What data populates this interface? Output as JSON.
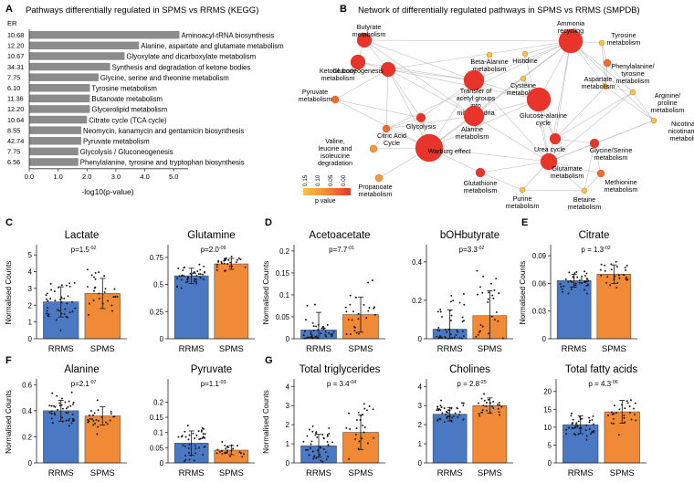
{
  "panel_a": {
    "letter": "A",
    "title": "Pathways differentially regulated in SPMS vs RRMS (KEGG)",
    "er_label": "ER",
    "xlabel": "-log10(p-value)",
    "ticks": [
      "0.0",
      "1.0",
      "2.0",
      "3.0",
      "4.0",
      "5.0"
    ]
  },
  "panel_b": {
    "letter": "B",
    "title": "Network of differentially regulated pathways in SPMS vs RRMS (SMPDB)",
    "legend_title": "p value",
    "legend_ticks": [
      "0.15",
      "0.10",
      "0.05",
      "0.00"
    ]
  },
  "panel_letters": {
    "c": "C",
    "d": "D",
    "e": "E",
    "f": "F",
    "g": "G"
  },
  "colors": {
    "rrms": "#4a78c2",
    "spms": "#f08a36",
    "bar_a": "#8c8c8c",
    "node": "#e8342a"
  },
  "chart_data": [
    {
      "type": "bar",
      "panel": "A",
      "title": "Pathways differentially regulated in SPMS vs RRMS (KEGG)",
      "xlabel": "-log10(p-value)",
      "xlim": [
        0,
        5.5
      ],
      "rows": [
        {
          "er": "10.68",
          "label": "Aminoacyl-tRNA biosynthesis",
          "value": 5.2
        },
        {
          "er": "12.20",
          "label": "Alanine, aspartate and glutamate metabolism",
          "value": 3.8
        },
        {
          "er": "10.67",
          "label": "Glyoxylate and dicarboxylate metabolism",
          "value": 3.3
        },
        {
          "er": "34.31",
          "label": "Synthesis and degradation of ketone bodies",
          "value": 2.8
        },
        {
          "er": "7.75",
          "label": "Glycine, serine and theonine metabolism",
          "value": 2.4
        },
        {
          "er": "6.10",
          "label": "Tyrosine metabolism",
          "value": 2.1
        },
        {
          "er": "11.36",
          "label": "Butanoate metabolism",
          "value": 2.1
        },
        {
          "er": "12.20",
          "label": "Glycerolipid metabolism",
          "value": 2.1
        },
        {
          "er": "10.64",
          "label": "Citrate cycle (TCA cycle)",
          "value": 2.0
        },
        {
          "er": "8.55",
          "label": "Neomycin, kanamycin and gentamicin biosynthesis",
          "value": 1.8
        },
        {
          "er": "42.74",
          "label": "Pyruvate metabolism",
          "value": 1.8
        },
        {
          "er": "7.75",
          "label": "Glycolysis / Gluconeogenesis",
          "value": 1.7
        },
        {
          "er": "6.56",
          "label": "Phenylalanine, tyrosine and tryptophan biosynthesis",
          "value": 1.7
        }
      ]
    },
    {
      "type": "network",
      "panel": "B",
      "title": "Network of differentially regulated pathways in SPMS vs RRMS (SMPDB)",
      "legend_title": "p value",
      "nodes": [
        {
          "label": "Ammonia recycling",
          "p": 0.0,
          "r": 13,
          "lx": 0,
          "ly": -17
        },
        {
          "label": "Butyrate metabolism",
          "p": 0.01,
          "r": 8,
          "lx": 5,
          "ly": -12
        },
        {
          "label": "Ketone body metabolism",
          "p": 0.01,
          "r": 8,
          "lx": -22,
          "ly": 12
        },
        {
          "label": "Beta-Alanine metabolism",
          "p": 0.12,
          "r": 3,
          "lx": 0,
          "ly": 10
        },
        {
          "label": "Histidine",
          "p": 0.12,
          "r": 3,
          "lx": 0,
          "ly": 10
        },
        {
          "label": "Tyrosine metabolism",
          "p": 0.12,
          "r": 3,
          "lx": 24,
          "ly": -6
        },
        {
          "label": "Phenylalanine/ tyrosine metabolism",
          "p": 0.05,
          "r": 4,
          "lx": 28,
          "ly": 6
        },
        {
          "label": "Gluconeogenesis",
          "p": 0.01,
          "r": 8,
          "lx": -33,
          "ly": 4
        },
        {
          "label": "Cysteine metabolism",
          "p": 0.12,
          "r": 3,
          "lx": 0,
          "ly": 10
        },
        {
          "label": "Aspartate metabolism",
          "p": 0.15,
          "r": 3,
          "lx": -8,
          "ly": -6
        },
        {
          "label": "Arginine/ proline metabolism",
          "p": 0.15,
          "r": 3,
          "lx": 38,
          "ly": 6
        },
        {
          "label": "Pyruvate metabolism",
          "p": 0.05,
          "r": 4,
          "lx": -22,
          "ly": -6
        },
        {
          "label": "Transfer of acetyl groups into mitochondria",
          "p": 0.0,
          "r": 11,
          "lx": 2,
          "ly": 14
        },
        {
          "label": "Glycolysis",
          "p": 0.02,
          "r": 5,
          "lx": 0,
          "ly": 12
        },
        {
          "label": "Glucose-alanine cycle",
          "p": 0.0,
          "r": 13,
          "lx": 5,
          "ly": 20
        },
        {
          "label": "Alanine metabolism",
          "p": 0.0,
          "r": 11,
          "lx": -2,
          "ly": 17
        },
        {
          "label": "Citric Acid Cycle",
          "p": 0.04,
          "r": 4,
          "lx": 6,
          "ly": 10
        },
        {
          "label": "Urea cycle",
          "p": 0.02,
          "r": 6,
          "lx": -6,
          "ly": 14
        },
        {
          "label": "Nicotinate/ nicotinamide metabolism",
          "p": 0.15,
          "r": 3,
          "lx": 36,
          "ly": 6
        },
        {
          "label": "Valine, leucine and isoleucine degradation",
          "p": 0.07,
          "r": 4,
          "lx": -42,
          "ly": -6
        },
        {
          "label": "Glycine/Serine metabolism",
          "p": 0.02,
          "r": 5,
          "lx": 18,
          "ly": 10
        },
        {
          "label": "Warburg effect",
          "p": 0.0,
          "r": 15,
          "lx": 22,
          "ly": 6
        },
        {
          "label": "Glutamate metabolism",
          "p": 0.0,
          "r": 9,
          "lx": 20,
          "ly": 10
        },
        {
          "label": "Glutathione metabolism",
          "p": 0.02,
          "r": 5,
          "lx": 0,
          "ly": 14
        },
        {
          "label": "Methionine metabolism",
          "p": 0.04,
          "r": 4,
          "lx": 22,
          "ly": 12
        },
        {
          "label": "Purine metabolism",
          "p": 0.12,
          "r": 3,
          "lx": 0,
          "ly": 12
        },
        {
          "label": "Betaine metabolism",
          "p": 0.12,
          "r": 3,
          "lx": 0,
          "ly": 12
        },
        {
          "label": "Propanoate metabolism",
          "p": 0.07,
          "r": 4,
          "lx": -4,
          "ly": 12
        }
      ]
    },
    {
      "type": "bar",
      "panel": "C",
      "title": "Lactate",
      "ylabel": "Normalised Counts",
      "categories": [
        "RRMS",
        "SPMS"
      ],
      "values": [
        2.2,
        2.7
      ],
      "errors": [
        0.9,
        0.9
      ],
      "ylim": [
        0,
        5.5
      ],
      "yticks": [
        0,
        1,
        2,
        3,
        4,
        5
      ],
      "annotation": "p=1.5",
      "annotation_exp": "-02"
    },
    {
      "type": "bar",
      "panel": "C",
      "title": "Glutamine",
      "ylabel": "",
      "categories": [
        "RRMS",
        "SPMS"
      ],
      "values": [
        0.58,
        0.69
      ],
      "errors": [
        0.07,
        0.05
      ],
      "ylim": [
        0,
        0.85
      ],
      "yticks": [
        0,
        0.25,
        0.5,
        0.75
      ],
      "annotation": "p=2.0",
      "annotation_exp": "-09"
    },
    {
      "type": "bar",
      "panel": "D",
      "title": "Acetoacetate",
      "ylabel": "Normalised Counts",
      "categories": [
        "RRMS",
        "SPMS"
      ],
      "values": [
        0.02,
        0.055
      ],
      "errors": [
        0.04,
        0.04
      ],
      "ylim": [
        0,
        0.21
      ],
      "yticks": [
        0,
        0.05,
        0.1,
        0.15,
        0.2
      ],
      "annotation": "p=7.7",
      "annotation_exp": "-01"
    },
    {
      "type": "bar",
      "panel": "D",
      "title": "bOHbutyrate",
      "ylabel": "",
      "categories": [
        "RRMS",
        "SPMS"
      ],
      "values": [
        0.05,
        0.12
      ],
      "errors": [
        0.1,
        0.13
      ],
      "ylim": [
        0,
        0.48
      ],
      "yticks": [
        0,
        0.2,
        0.4
      ],
      "annotation": "p=3.3",
      "annotation_exp": "-02"
    },
    {
      "type": "bar",
      "panel": "E",
      "title": "Citrate",
      "ylabel": "Normalised Counts",
      "categories": [
        "RRMS",
        "SPMS"
      ],
      "values": [
        0.063,
        0.07
      ],
      "errors": [
        0.007,
        0.01
      ],
      "ylim": [
        0,
        0.1
      ],
      "yticks": [
        0,
        0.03,
        0.06,
        0.09
      ],
      "annotation": "p = 1.3",
      "annotation_exp": "-02"
    },
    {
      "type": "bar",
      "panel": "F",
      "title": "Alanine",
      "ylabel": "Normalised Counts",
      "categories": [
        "RRMS",
        "SPMS"
      ],
      "values": [
        0.4,
        0.36
      ],
      "errors": [
        0.08,
        0.07
      ],
      "ylim": [
        0,
        0.63
      ],
      "yticks": [
        0,
        0.2,
        0.4,
        0.6
      ],
      "annotation": "p=2.1",
      "annotation_exp": "-07"
    },
    {
      "type": "bar",
      "panel": "F",
      "title": "Pyruvate",
      "ylabel": "",
      "categories": [
        "RRMS",
        "SPMS"
      ],
      "values": [
        0.065,
        0.042
      ],
      "errors": [
        0.04,
        0.015
      ],
      "ylim": [
        0,
        0.27
      ],
      "yticks": [
        0,
        0.05,
        0.1,
        0.15,
        0.2
      ],
      "annotation": "p=1.1",
      "annotation_exp": "-03"
    },
    {
      "type": "bar",
      "panel": "G",
      "title": "Total triglycerides",
      "ylabel": "Normalised Counts",
      "categories": [
        "RRMS",
        "SPMS"
      ],
      "values": [
        0.9,
        1.6
      ],
      "errors": [
        0.6,
        0.9
      ],
      "ylim": [
        0,
        4.3
      ],
      "yticks": [
        0,
        1,
        2,
        3,
        4
      ],
      "annotation": "p = 3.4",
      "annotation_exp": "-04"
    },
    {
      "type": "bar",
      "panel": "G",
      "title": "Cholines",
      "ylabel": "",
      "categories": [
        "RRMS",
        "SPMS"
      ],
      "values": [
        2.55,
        3.0
      ],
      "errors": [
        0.35,
        0.4
      ],
      "ylim": [
        0,
        4.3
      ],
      "yticks": [
        0,
        1,
        2,
        3,
        4
      ],
      "annotation": "p = 2.8",
      "annotation_exp": "-25"
    },
    {
      "type": "bar",
      "panel": "G",
      "title": "Total fatty acids",
      "ylabel": "",
      "categories": [
        "RRMS",
        "SPMS"
      ],
      "values": [
        10.7,
        14.3
      ],
      "errors": [
        2.5,
        3.2
      ],
      "ylim": [
        0,
        23
      ],
      "yticks": [
        0,
        5,
        10,
        15,
        20
      ],
      "annotation": "p = 4.3",
      "annotation_exp": "-06"
    }
  ]
}
